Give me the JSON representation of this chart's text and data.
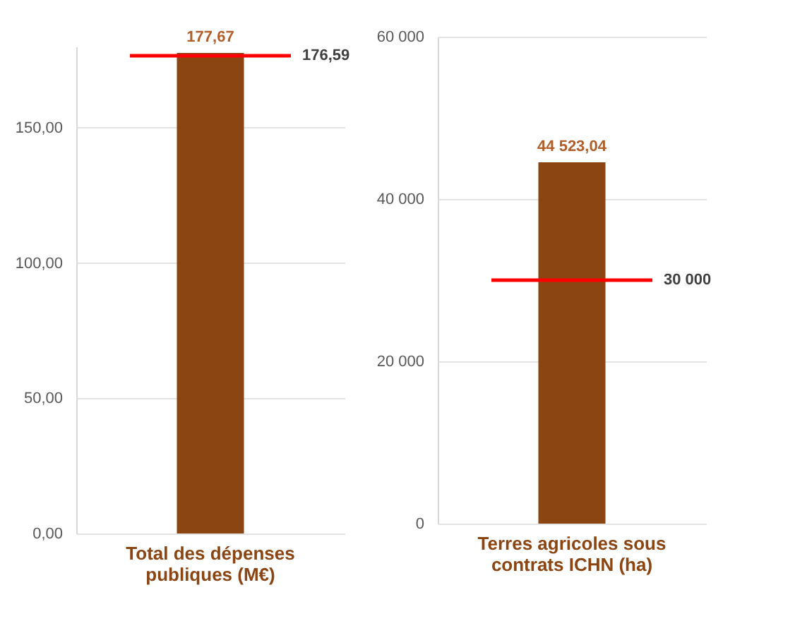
{
  "chart_data": [
    {
      "type": "bar",
      "categories": [
        "Total des dépenses publiques (M€)"
      ],
      "values": [
        177.67
      ],
      "color": "#8b4513",
      "value_labels": [
        "177,67"
      ],
      "ylim": [
        0,
        180
      ],
      "yticks": [
        {
          "value": 0,
          "label": "0,00"
        },
        {
          "value": 50,
          "label": "50,00"
        },
        {
          "value": 100,
          "label": "100,00"
        },
        {
          "value": 150,
          "label": "150,00"
        }
      ],
      "grid": "y",
      "ref_lines": [
        {
          "axis": "y",
          "value": 176.59,
          "label": "176,59",
          "color": "#ff0000"
        }
      ]
    },
    {
      "type": "bar",
      "categories": [
        "Terres agricoles sous contrats ICHN (ha)"
      ],
      "values": [
        44523.04
      ],
      "color": "#8b4513",
      "value_labels": [
        "44 523,04"
      ],
      "ylim": [
        0,
        60000
      ],
      "yticks": [
        {
          "value": 0,
          "label": "0"
        },
        {
          "value": 20000,
          "label": "20 000"
        },
        {
          "value": 40000,
          "label": "40 000"
        },
        {
          "value": 60000,
          "label": "60 000"
        }
      ],
      "grid": "y",
      "ref_lines": [
        {
          "axis": "y",
          "value": 30000,
          "label": "30 000",
          "color": "#ff0000"
        }
      ]
    }
  ]
}
